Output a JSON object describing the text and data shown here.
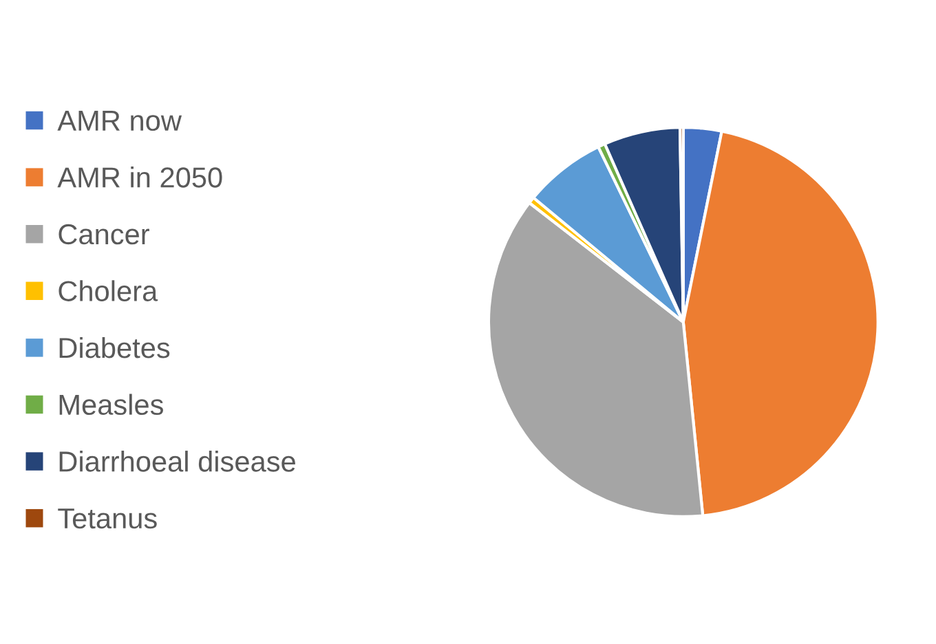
{
  "chart_data": {
    "type": "pie",
    "categories": [
      "AMR now",
      "AMR in 2050",
      "Cancer",
      "Cholera",
      "Diabetes",
      "Measles",
      "Diarrhoeal disease",
      "Tetanus"
    ],
    "values": [
      3.17,
      45.23,
      37.09,
      0.54,
      6.78,
      0.59,
      6.33,
      0.27
    ],
    "colors": [
      "#4472c4",
      "#ed7d31",
      "#a5a5a5",
      "#ffc000",
      "#5b9bd5",
      "#70ad47",
      "#264478",
      "#9e480e"
    ],
    "legend": "left"
  }
}
